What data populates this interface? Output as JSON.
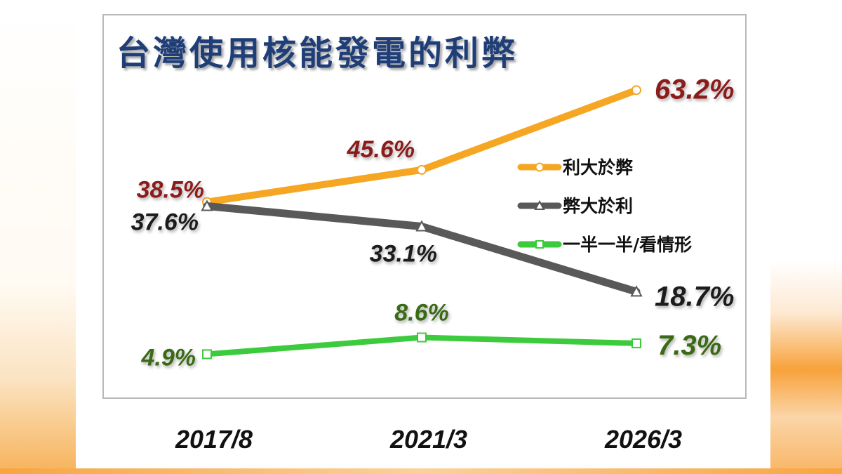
{
  "chart_data": {
    "type": "line",
    "title": "台灣使用核能發電的利弊",
    "categories": [
      "2017/8",
      "2021/3",
      "2026/3"
    ],
    "ylim": [
      0,
      70
    ],
    "grid": false,
    "legend_position": "right",
    "series": [
      {
        "name": "利大於弊",
        "values": [
          38.5,
          45.6,
          63.2
        ],
        "labels": [
          "38.5%",
          "45.6%",
          "63.2%"
        ],
        "color": "#f5a623",
        "label_color": "#8b1a1a",
        "marker": "circle"
      },
      {
        "name": "弊大於利",
        "values": [
          37.6,
          33.1,
          18.7
        ],
        "labels": [
          "37.6%",
          "33.1%",
          "18.7%"
        ],
        "color": "#595959",
        "label_color": "#1e1e1e",
        "marker": "triangle"
      },
      {
        "name": "一半一半/看情形",
        "values": [
          4.9,
          8.6,
          7.3
        ],
        "labels": [
          "4.9%",
          "8.6%",
          "7.3%"
        ],
        "color": "#3ccb3c",
        "label_color": "#3a6b16",
        "marker": "square"
      }
    ]
  }
}
